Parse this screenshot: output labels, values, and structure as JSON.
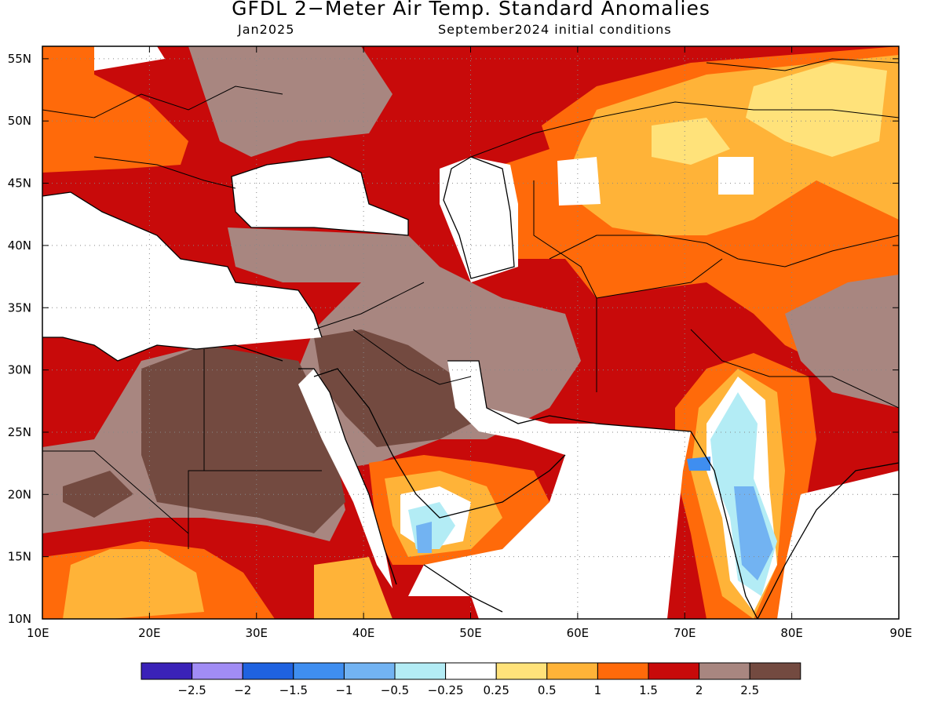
{
  "title": "GFDL 2−Meter Air Temp. Standard Anomalies",
  "subtitle_left": "Jan2025",
  "subtitle_right": "September2024 initial conditions",
  "map": {
    "lon_range": [
      10,
      90
    ],
    "lat_range": [
      10,
      56
    ],
    "lon_ticks": [
      "10E",
      "20E",
      "30E",
      "40E",
      "50E",
      "60E",
      "70E",
      "80E",
      "90E"
    ],
    "lon_values": [
      10,
      20,
      30,
      40,
      50,
      60,
      70,
      80,
      90
    ],
    "lat_ticks": [
      "10N",
      "15N",
      "20N",
      "25N",
      "30N",
      "35N",
      "40N",
      "45N",
      "50N",
      "55N"
    ],
    "lat_values": [
      10,
      15,
      20,
      25,
      30,
      35,
      40,
      45,
      50,
      55
    ],
    "grid": "dotted"
  },
  "colorbar": {
    "labels": [
      "−2.5",
      "−2",
      "−1.5",
      "−1",
      "−0.5",
      "−0.25",
      "0.25",
      "0.5",
      "1",
      "1.5",
      "2",
      "2.5"
    ],
    "colors": [
      "#3a22b8",
      "#a18cf5",
      "#1f62e0",
      "#3f8ef0",
      "#72b3f2",
      "#b3ecf5",
      "#ffffff",
      "#ffe27a",
      "#ffb338",
      "#ff6a0a",
      "#c80a0a",
      "#a88680",
      "#734a40"
    ]
  }
}
